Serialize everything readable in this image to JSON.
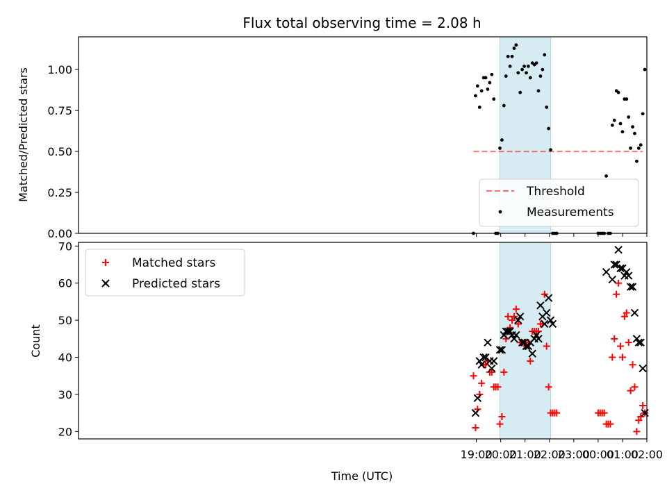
{
  "chart_data": [
    {
      "type": "scatter",
      "title": "Flux total observing time = 2.08 h",
      "xlabel": "",
      "ylabel": "Matched/Predicted stars",
      "ylim": [
        0,
        1.2
      ],
      "yticks": [
        "0.00",
        "0.25",
        "0.50",
        "0.75",
        "1.00"
      ],
      "highlight_span": {
        "from": "19:58",
        "to": "22:03"
      },
      "legend_position": "lower right",
      "threshold": {
        "name": "Threshold",
        "y": 0.5,
        "from": "18:53",
        "to": "01:50"
      },
      "series": [
        {
          "name": "Measurements",
          "points": [
            [
              "18:53",
              0.0
            ],
            [
              "18:58",
              0.84
            ],
            [
              "19:03",
              0.9
            ],
            [
              "19:08",
              0.77
            ],
            [
              "19:13",
              0.87
            ],
            [
              "19:18",
              0.95
            ],
            [
              "19:23",
              0.95
            ],
            [
              "19:28",
              0.88
            ],
            [
              "19:33",
              0.92
            ],
            [
              "19:38",
              0.97
            ],
            [
              "19:43",
              0.82
            ],
            [
              "19:48",
              0.0
            ],
            [
              "19:53",
              0.0
            ],
            [
              "19:58",
              0.52
            ],
            [
              "20:03",
              0.57
            ],
            [
              "20:08",
              0.78
            ],
            [
              "20:13",
              0.96
            ],
            [
              "20:18",
              1.08
            ],
            [
              "20:23",
              1.02
            ],
            [
              "20:28",
              1.08
            ],
            [
              "20:33",
              1.13
            ],
            [
              "20:38",
              1.15
            ],
            [
              "20:43",
              0.98
            ],
            [
              "20:48",
              0.86
            ],
            [
              "20:53",
              1.0
            ],
            [
              "20:58",
              1.02
            ],
            [
              "21:03",
              0.98
            ],
            [
              "21:08",
              1.02
            ],
            [
              "21:13",
              0.95
            ],
            [
              "21:18",
              1.04
            ],
            [
              "21:23",
              1.03
            ],
            [
              "21:28",
              1.04
            ],
            [
              "21:33",
              0.87
            ],
            [
              "21:38",
              0.96
            ],
            [
              "21:43",
              1.0
            ],
            [
              "21:48",
              1.09
            ],
            [
              "21:53",
              0.77
            ],
            [
              "21:58",
              0.64
            ],
            [
              "22:03",
              0.51
            ],
            [
              "22:08",
              0.0
            ],
            [
              "22:13",
              0.0
            ],
            [
              "22:18",
              0.0
            ],
            [
              "00:00",
              0.0
            ],
            [
              "00:05",
              0.0
            ],
            [
              "00:10",
              0.0
            ],
            [
              "00:15",
              0.0
            ],
            [
              "00:20",
              0.35
            ],
            [
              "00:25",
              0.0
            ],
            [
              "00:30",
              0.0
            ],
            [
              "00:35",
              0.66
            ],
            [
              "00:40",
              0.69
            ],
            [
              "00:45",
              0.87
            ],
            [
              "00:50",
              0.86
            ],
            [
              "00:55",
              0.67
            ],
            [
              "01:00",
              0.62
            ],
            [
              "01:05",
              0.82
            ],
            [
              "01:10",
              0.82
            ],
            [
              "01:15",
              0.71
            ],
            [
              "01:20",
              0.52
            ],
            [
              "01:25",
              0.65
            ],
            [
              "01:30",
              0.61
            ],
            [
              "01:35",
              0.44
            ],
            [
              "01:40",
              0.52
            ],
            [
              "01:45",
              0.54
            ],
            [
              "01:50",
              0.73
            ],
            [
              "01:55",
              1.0
            ]
          ]
        }
      ]
    },
    {
      "type": "scatter",
      "title": "",
      "xlabel": "Time (UTC)",
      "ylabel": "Count",
      "ylim": [
        18,
        71
      ],
      "yticks": [
        "20",
        "30",
        "40",
        "50",
        "60",
        "70"
      ],
      "xticks": [
        "19:00",
        "20:00",
        "21:00",
        "22:00",
        "23:00",
        "00:00",
        "01:00",
        "02:00"
      ],
      "highlight_span": {
        "from": "19:58",
        "to": "22:03"
      },
      "legend_position": "upper left",
      "series": [
        {
          "name": "Matched stars",
          "color": "#ff0000",
          "points": [
            [
              "18:53",
              35
            ],
            [
              "18:58",
              21
            ],
            [
              "19:03",
              26
            ],
            [
              "19:08",
              30
            ],
            [
              "19:13",
              33
            ],
            [
              "19:18",
              38
            ],
            [
              "19:23",
              38
            ],
            [
              "19:28",
              39
            ],
            [
              "19:33",
              36
            ],
            [
              "19:38",
              36
            ],
            [
              "19:43",
              32
            ],
            [
              "19:48",
              32
            ],
            [
              "19:53",
              32
            ],
            [
              "19:58",
              22
            ],
            [
              "20:03",
              24
            ],
            [
              "20:08",
              36
            ],
            [
              "20:13",
              45
            ],
            [
              "20:18",
              51
            ],
            [
              "20:23",
              48
            ],
            [
              "20:28",
              50
            ],
            [
              "20:33",
              51
            ],
            [
              "20:38",
              53
            ],
            [
              "20:43",
              49
            ],
            [
              "20:48",
              44
            ],
            [
              "20:53",
              44
            ],
            [
              "20:58",
              44
            ],
            [
              "21:03",
              43
            ],
            [
              "21:08",
              44
            ],
            [
              "21:13",
              39
            ],
            [
              "21:18",
              47
            ],
            [
              "21:23",
              47
            ],
            [
              "21:28",
              47
            ],
            [
              "21:33",
              47
            ],
            [
              "21:38",
              49
            ],
            [
              "21:43",
              49
            ],
            [
              "21:48",
              57
            ],
            [
              "21:53",
              43
            ],
            [
              "21:58",
              32
            ],
            [
              "22:03",
              25
            ],
            [
              "22:08",
              25
            ],
            [
              "22:13",
              25
            ],
            [
              "22:18",
              25
            ],
            [
              "00:00",
              25
            ],
            [
              "00:05",
              25
            ],
            [
              "00:10",
              25
            ],
            [
              "00:15",
              25
            ],
            [
              "00:20",
              22
            ],
            [
              "00:25",
              22
            ],
            [
              "00:30",
              22
            ],
            [
              "00:35",
              40
            ],
            [
              "00:40",
              45
            ],
            [
              "00:45",
              57
            ],
            [
              "00:50",
              60
            ],
            [
              "00:55",
              43
            ],
            [
              "01:00",
              40
            ],
            [
              "01:05",
              51
            ],
            [
              "01:10",
              52
            ],
            [
              "01:15",
              44
            ],
            [
              "01:20",
              31
            ],
            [
              "01:25",
              38
            ],
            [
              "01:30",
              32
            ],
            [
              "01:35",
              20
            ],
            [
              "01:40",
              23
            ],
            [
              "01:45",
              24
            ],
            [
              "01:50",
              27
            ],
            [
              "01:55",
              25
            ]
          ]
        },
        {
          "name": "Predicted stars",
          "color": "#000000",
          "points": [
            [
              "18:58",
              25
            ],
            [
              "19:03",
              29
            ],
            [
              "19:08",
              39
            ],
            [
              "19:13",
              38
            ],
            [
              "19:18",
              40
            ],
            [
              "19:23",
              40
            ],
            [
              "19:28",
              44
            ],
            [
              "19:33",
              39
            ],
            [
              "19:38",
              37
            ],
            [
              "19:43",
              39
            ],
            [
              "19:58",
              42
            ],
            [
              "20:03",
              42
            ],
            [
              "20:08",
              46
            ],
            [
              "20:13",
              47
            ],
            [
              "20:18",
              47
            ],
            [
              "20:23",
              47
            ],
            [
              "20:28",
              46
            ],
            [
              "20:33",
              45
            ],
            [
              "20:38",
              46
            ],
            [
              "20:43",
              50
            ],
            [
              "20:48",
              51
            ],
            [
              "20:53",
              44
            ],
            [
              "20:58",
              44
            ],
            [
              "21:03",
              43
            ],
            [
              "21:08",
              43
            ],
            [
              "21:13",
              44
            ],
            [
              "21:18",
              41
            ],
            [
              "21:23",
              45
            ],
            [
              "21:28",
              46
            ],
            [
              "21:33",
              45
            ],
            [
              "21:38",
              54
            ],
            [
              "21:43",
              51
            ],
            [
              "21:48",
              49
            ],
            [
              "21:53",
              52
            ],
            [
              "21:58",
              56
            ],
            [
              "22:03",
              50
            ],
            [
              "22:08",
              49
            ],
            [
              "00:20",
              63
            ],
            [
              "00:35",
              61
            ],
            [
              "00:40",
              65
            ],
            [
              "00:45",
              65
            ],
            [
              "00:50",
              69
            ],
            [
              "00:55",
              64
            ],
            [
              "01:00",
              64
            ],
            [
              "01:05",
              62
            ],
            [
              "01:10",
              63
            ],
            [
              "01:15",
              62
            ],
            [
              "01:20",
              59
            ],
            [
              "01:25",
              59
            ],
            [
              "01:30",
              52
            ],
            [
              "01:35",
              45
            ],
            [
              "01:40",
              44
            ],
            [
              "01:45",
              44
            ],
            [
              "01:50",
              37
            ],
            [
              "01:55",
              25
            ]
          ]
        }
      ]
    }
  ]
}
